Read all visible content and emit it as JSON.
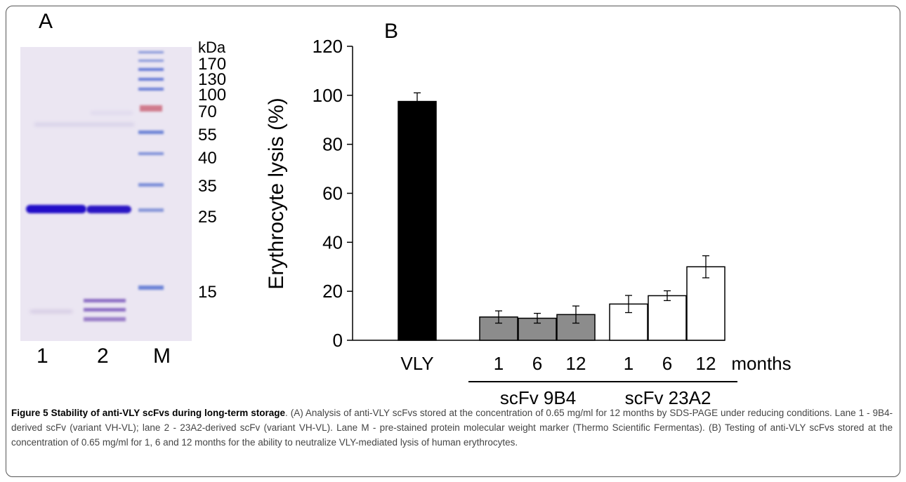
{
  "panel_a": {
    "label": "A",
    "marker_unit": "kDa",
    "markers": [
      "170",
      "130",
      "100",
      "70",
      "55",
      "40",
      "35",
      "25",
      "15"
    ],
    "lanes": [
      "1",
      "2",
      "M"
    ]
  },
  "chart_data": {
    "type": "bar",
    "panel_label": "B",
    "categories": [
      "VLY",
      "1",
      "6",
      "12",
      "1",
      "6",
      "12"
    ],
    "values": [
      97.5,
      9.5,
      9,
      10.5,
      14.8,
      18.2,
      30
    ],
    "errors": [
      3.5,
      2.5,
      2,
      3.5,
      3.5,
      2,
      4.5
    ],
    "bar_colors": [
      "#000000",
      "#8c8c8c",
      "#8c8c8c",
      "#8c8c8c",
      "#ffffff",
      "#ffffff",
      "#ffffff"
    ],
    "groups": [
      {
        "label": "scFv 9B4",
        "members": [
          1,
          2,
          3
        ]
      },
      {
        "label": "scFv 23A2",
        "members": [
          4,
          5,
          6
        ]
      }
    ],
    "xunit": "months",
    "ylabel": "Erythrocyte lysis  (%)",
    "ylim": [
      0,
      120
    ],
    "yticks": [
      "0",
      "20",
      "40",
      "60",
      "80",
      "100",
      "120"
    ],
    "grid": false
  },
  "caption": {
    "title": "Figure 5 Stability of anti-VLY scFvs during long-term storage",
    "body": ". (A) Analysis of anti-VLY scFvs stored at the concentration of 0.65 mg/ml for 12 months by SDS-PAGE under reducing conditions. Lane 1 - 9B4-derived scFv (variant VH-VL); lane 2 - 23A2-derived scFv (variant VH-VL). Lane M - pre-stained protein molecular weight marker (Thermo Scientific Fermentas). (B) Testing of anti-VLY scFvs stored at the concentration of 0.65 mg/ml for 1, 6 and 12 months for the ability to neutralize VLY-mediated lysis of human erythrocytes."
  }
}
